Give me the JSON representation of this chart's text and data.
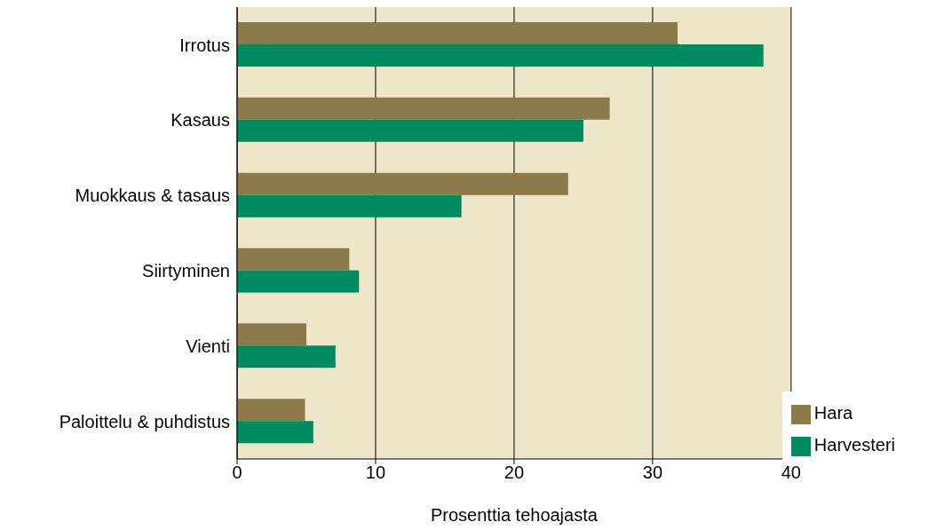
{
  "chart_data": {
    "type": "bar",
    "orientation": "horizontal",
    "xlabel": "Prosenttia tehoajasta",
    "categories": [
      "Irrotus",
      "Kasaus",
      "Muokkaus & tasaus",
      "Siirtyminen",
      "Vienti",
      "Paloittelu & puhdistus"
    ],
    "series": [
      {
        "name": "Hara",
        "color": "#8b7b4b",
        "values": [
          31.8,
          26.9,
          23.9,
          8.1,
          5.0,
          4.9
        ]
      },
      {
        "name": "Harvesteri",
        "color": "#008a62",
        "values": [
          38.0,
          25.0,
          16.2,
          8.8,
          7.1,
          5.5
        ]
      }
    ],
    "xlim": [
      0,
      40
    ],
    "xticks": [
      0,
      10,
      20,
      30,
      40
    ],
    "grid": "x",
    "legend": "bottom right"
  }
}
